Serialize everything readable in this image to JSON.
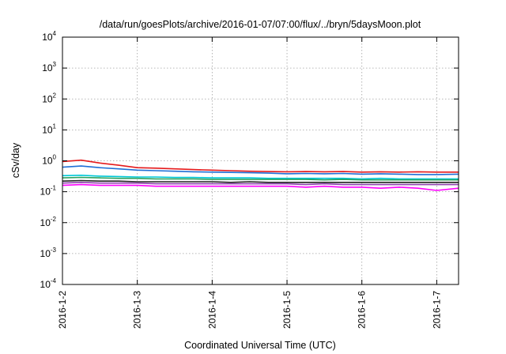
{
  "chart_data": {
    "type": "line",
    "title": "/data/run/goesPlots/archive/2016-01-07/07:00/flux/../bryn/5daysMoon.plot",
    "xlabel": "Coordinated Universal Time (UTC)",
    "ylabel": "cSv/day",
    "yscale": "log",
    "ylim": [
      0.0001,
      10000
    ],
    "y_ticks": [
      {
        "base": "10",
        "exp": "-4"
      },
      {
        "base": "10",
        "exp": "-3"
      },
      {
        "base": "10",
        "exp": "-2"
      },
      {
        "base": "10",
        "exp": "-1"
      },
      {
        "base": "10",
        "exp": "0"
      },
      {
        "base": "10",
        "exp": "1"
      },
      {
        "base": "10",
        "exp": "2"
      },
      {
        "base": "10",
        "exp": "3"
      },
      {
        "base": "10",
        "exp": "4"
      }
    ],
    "xlim": [
      "2016-01-02T00:00",
      "2016-01-07T07:00"
    ],
    "x_ticks": [
      "2016-1-2",
      "2016-1-3",
      "2016-1-4",
      "2016-1-5",
      "2016-1-6",
      "2016-1-7"
    ],
    "x_tick_dates": [
      "2016-01-02T00:00",
      "2016-01-03T00:00",
      "2016-01-04T00:00",
      "2016-01-05T00:00",
      "2016-01-06T00:00",
      "2016-01-07T00:00"
    ],
    "grid": true,
    "legend": "none",
    "x": [
      "2016-01-02T00:00",
      "2016-01-02T06:00",
      "2016-01-02T12:00",
      "2016-01-02T18:00",
      "2016-01-03T00:00",
      "2016-01-03T06:00",
      "2016-01-03T12:00",
      "2016-01-03T18:00",
      "2016-01-04T00:00",
      "2016-01-04T06:00",
      "2016-01-04T12:00",
      "2016-01-04T18:00",
      "2016-01-05T00:00",
      "2016-01-05T06:00",
      "2016-01-05T12:00",
      "2016-01-05T18:00",
      "2016-01-06T00:00",
      "2016-01-06T06:00",
      "2016-01-06T12:00",
      "2016-01-06T18:00",
      "2016-01-07T00:00",
      "2016-01-07T07:00"
    ],
    "series": [
      {
        "color": "#e41a1c",
        "values": [
          0.95,
          1.05,
          0.85,
          0.72,
          0.6,
          0.58,
          0.55,
          0.52,
          0.5,
          0.48,
          0.46,
          0.45,
          0.44,
          0.45,
          0.44,
          0.45,
          0.43,
          0.44,
          0.43,
          0.44,
          0.43,
          0.43
        ]
      },
      {
        "color": "#1f6fd6",
        "values": [
          0.62,
          0.68,
          0.6,
          0.55,
          0.5,
          0.48,
          0.46,
          0.44,
          0.43,
          0.42,
          0.41,
          0.4,
          0.38,
          0.39,
          0.38,
          0.39,
          0.37,
          0.38,
          0.37,
          0.36,
          0.36,
          0.37
        ]
      },
      {
        "color": "#00c8d7",
        "values": [
          0.33,
          0.34,
          0.32,
          0.31,
          0.3,
          0.3,
          0.29,
          0.29,
          0.28,
          0.28,
          0.28,
          0.27,
          0.27,
          0.27,
          0.27,
          0.27,
          0.26,
          0.27,
          0.26,
          0.26,
          0.26,
          0.26
        ]
      },
      {
        "color": "#2ca25f",
        "values": [
          0.28,
          0.29,
          0.28,
          0.27,
          0.27,
          0.26,
          0.26,
          0.26,
          0.25,
          0.25,
          0.25,
          0.25,
          0.25,
          0.25,
          0.24,
          0.25,
          0.24,
          0.24,
          0.24,
          0.24,
          0.24,
          0.24
        ]
      },
      {
        "color": "#222222",
        "values": [
          0.22,
          0.23,
          0.22,
          0.22,
          0.21,
          0.21,
          0.21,
          0.21,
          0.21,
          0.2,
          0.21,
          0.2,
          0.2,
          0.2,
          0.2,
          0.2,
          0.2,
          0.2,
          0.2,
          0.2,
          0.2,
          0.2
        ]
      },
      {
        "color": "#8e44ad",
        "values": [
          0.19,
          0.2,
          0.19,
          0.19,
          0.19,
          0.18,
          0.18,
          0.18,
          0.18,
          0.18,
          0.18,
          0.18,
          0.18,
          0.17,
          0.18,
          0.17,
          0.17,
          0.17,
          0.17,
          0.17,
          0.17,
          0.17
        ]
      },
      {
        "color": "#ff00ff",
        "values": [
          0.16,
          0.17,
          0.16,
          0.16,
          0.16,
          0.15,
          0.15,
          0.15,
          0.15,
          0.15,
          0.15,
          0.15,
          0.15,
          0.14,
          0.15,
          0.14,
          0.14,
          0.13,
          0.14,
          0.13,
          0.11,
          0.13
        ]
      }
    ]
  }
}
